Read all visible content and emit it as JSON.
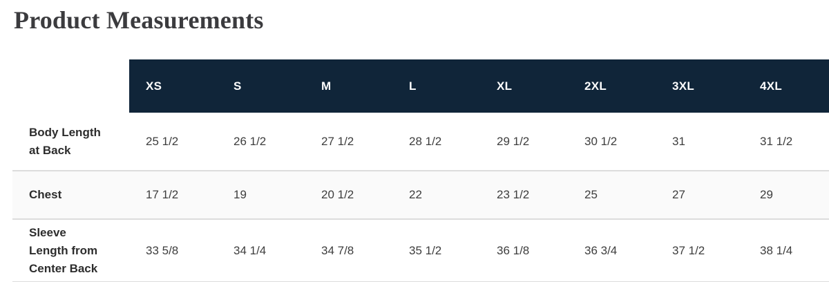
{
  "title": "Product Measurements",
  "colors": {
    "header_bg": "#102539",
    "header_text": "#ffffff",
    "divider": "#dcdcdc",
    "row_stripe": "#fafafa",
    "title_text": "#3b3b3e",
    "body_text": "#3d3d3d"
  },
  "table": {
    "sizes": [
      "XS",
      "S",
      "M",
      "L",
      "XL",
      "2XL",
      "3XL",
      "4XL"
    ],
    "rows": [
      {
        "label": "Body Length at Back",
        "label_lines": [
          "Body Length",
          "at Back"
        ],
        "values": [
          "25 1/2",
          "26 1/2",
          "27 1/2",
          "28 1/2",
          "29 1/2",
          "30 1/2",
          "31",
          "31 1/2"
        ]
      },
      {
        "label": "Chest",
        "label_lines": [
          "Chest"
        ],
        "values": [
          "17 1/2",
          "19",
          "20 1/2",
          "22",
          "23 1/2",
          "25",
          "27",
          "29"
        ]
      },
      {
        "label": "Sleeve Length from Center Back",
        "label_lines": [
          "Sleeve",
          "Length from",
          "Center Back"
        ],
        "values": [
          "33 5/8",
          "34 1/4",
          "34 7/8",
          "35 1/2",
          "36 1/8",
          "36 3/4",
          "37 1/2",
          "38 1/4"
        ]
      }
    ]
  }
}
